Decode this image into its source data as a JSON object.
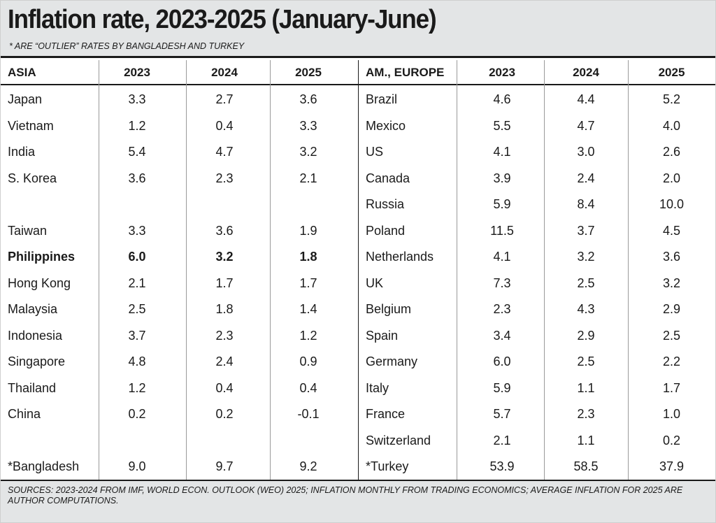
{
  "title": "Inflation rate, 2023-2025 (January-June)",
  "subtitle": "* ARE “OUTLIER” RATES BY BANGLADESH AND TURKEY",
  "left_table": {
    "headers": [
      "ASIA",
      "2023",
      "2024",
      "2025"
    ],
    "rows": [
      {
        "country": "Japan",
        "values": [
          "3.3",
          "2.7",
          "3.6"
        ],
        "bold": false
      },
      {
        "country": "Vietnam",
        "values": [
          "1.2",
          "0.4",
          "3.3"
        ],
        "bold": false
      },
      {
        "country": "India",
        "values": [
          "5.4",
          "4.7",
          "3.2"
        ],
        "bold": false
      },
      {
        "country": "S. Korea",
        "values": [
          "3.6",
          "2.3",
          "2.1"
        ],
        "bold": false
      },
      {
        "country": "",
        "values": [
          "",
          "",
          ""
        ],
        "bold": false
      },
      {
        "country": "Taiwan",
        "values": [
          "3.3",
          "3.6",
          "1.9"
        ],
        "bold": false
      },
      {
        "country": "Philippines",
        "values": [
          "6.0",
          "3.2",
          "1.8"
        ],
        "bold": true
      },
      {
        "country": "Hong Kong",
        "values": [
          "2.1",
          "1.7",
          "1.7"
        ],
        "bold": false
      },
      {
        "country": "Malaysia",
        "values": [
          "2.5",
          "1.8",
          "1.4"
        ],
        "bold": false
      },
      {
        "country": "Indonesia",
        "values": [
          "3.7",
          "2.3",
          "1.2"
        ],
        "bold": false
      },
      {
        "country": "Singapore",
        "values": [
          "4.8",
          "2.4",
          "0.9"
        ],
        "bold": false
      },
      {
        "country": "Thailand",
        "values": [
          "1.2",
          "0.4",
          "0.4"
        ],
        "bold": false
      },
      {
        "country": "China",
        "values": [
          "0.2",
          "0.2",
          "-0.1"
        ],
        "bold": false
      },
      {
        "country": "",
        "values": [
          "",
          "",
          ""
        ],
        "bold": false
      },
      {
        "country": "*Bangladesh",
        "values": [
          "9.0",
          "9.7",
          "9.2"
        ],
        "bold": false
      }
    ]
  },
  "right_table": {
    "headers": [
      "AM., EUROPE",
      "2023",
      "2024",
      "2025"
    ],
    "rows": [
      {
        "country": "Brazil",
        "values": [
          "4.6",
          "4.4",
          "5.2"
        ],
        "bold": false
      },
      {
        "country": "Mexico",
        "values": [
          "5.5",
          "4.7",
          "4.0"
        ],
        "bold": false
      },
      {
        "country": "US",
        "values": [
          "4.1",
          "3.0",
          "2.6"
        ],
        "bold": false
      },
      {
        "country": "Canada",
        "values": [
          "3.9",
          "2.4",
          "2.0"
        ],
        "bold": false
      },
      {
        "country": "Russia",
        "values": [
          "5.9",
          "8.4",
          "10.0"
        ],
        "bold": false
      },
      {
        "country": "Poland",
        "values": [
          "11.5",
          "3.7",
          "4.5"
        ],
        "bold": false
      },
      {
        "country": "Netherlands",
        "values": [
          "4.1",
          "3.2",
          "3.6"
        ],
        "bold": false
      },
      {
        "country": "UK",
        "values": [
          "7.3",
          "2.5",
          "3.2"
        ],
        "bold": false
      },
      {
        "country": "Belgium",
        "values": [
          "2.3",
          "4.3",
          "2.9"
        ],
        "bold": false
      },
      {
        "country": "Spain",
        "values": [
          "3.4",
          "2.9",
          "2.5"
        ],
        "bold": false
      },
      {
        "country": "Germany",
        "values": [
          "6.0",
          "2.5",
          "2.2"
        ],
        "bold": false
      },
      {
        "country": "Italy",
        "values": [
          "5.9",
          "1.1",
          "1.7"
        ],
        "bold": false
      },
      {
        "country": "France",
        "values": [
          "5.7",
          "2.3",
          "1.0"
        ],
        "bold": false
      },
      {
        "country": "Switzerland",
        "values": [
          "2.1",
          "1.1",
          "0.2"
        ],
        "bold": false
      },
      {
        "country": "*Turkey",
        "values": [
          "53.9",
          "58.5",
          "37.9"
        ],
        "bold": false
      }
    ]
  },
  "sources": "SOURCES: 2023-2024 FROM IMF, WORLD ECON. OUTLOOK (WEO) 2025; INFLATION MONTHLY FROM TRADING ECONOMICS; AVERAGE INFLATION FOR 2025 ARE AUTHOR COMPUTATIONS.",
  "colors": {
    "header_bg": "#e3e5e6",
    "text": "#1a1a1a",
    "rule": "#1a1a1a",
    "divider": "#9a9a9a"
  }
}
